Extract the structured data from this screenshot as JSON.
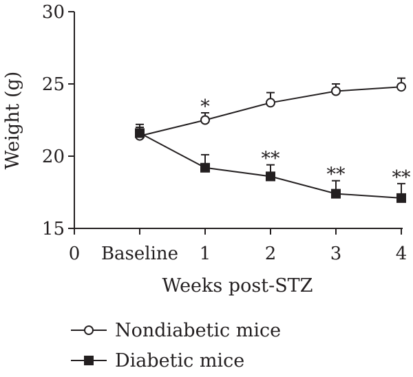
{
  "chart_data": {
    "type": "line",
    "xlabel": "Weeks post-STZ",
    "ylabel": "Weight (g)",
    "ylim": [
      15,
      30
    ],
    "yticks": [
      15,
      20,
      25,
      30
    ],
    "x_tick_labels": [
      "0",
      "Baseline",
      "1",
      "2",
      "3",
      "4"
    ],
    "grid": false,
    "legend_position": "bottom-left",
    "series": [
      {
        "name": "Nondiabetic mice",
        "marker": "open-circle",
        "color": "#231f20",
        "x": [
          "Baseline",
          "1",
          "2",
          "3",
          "4"
        ],
        "values": [
          21.4,
          22.5,
          23.7,
          24.5,
          24.8
        ],
        "error": [
          0.6,
          0.5,
          0.7,
          0.5,
          0.6
        ]
      },
      {
        "name": "Diabetic mice",
        "marker": "filled-square",
        "color": "#231f20",
        "x": [
          "Baseline",
          "1",
          "2",
          "3",
          "4"
        ],
        "values": [
          21.6,
          19.2,
          18.6,
          17.4,
          17.1
        ],
        "error": [
          0.6,
          0.9,
          0.8,
          0.9,
          1.0
        ]
      }
    ],
    "annotations": [
      {
        "x": "1",
        "text": "*",
        "near_series": "Nondiabetic mice"
      },
      {
        "x": "2",
        "text": "**",
        "near_series": "Diabetic mice"
      },
      {
        "x": "3",
        "text": "**",
        "near_series": "Diabetic mice"
      },
      {
        "x": "4",
        "text": "**",
        "near_series": "Diabetic mice"
      }
    ]
  }
}
